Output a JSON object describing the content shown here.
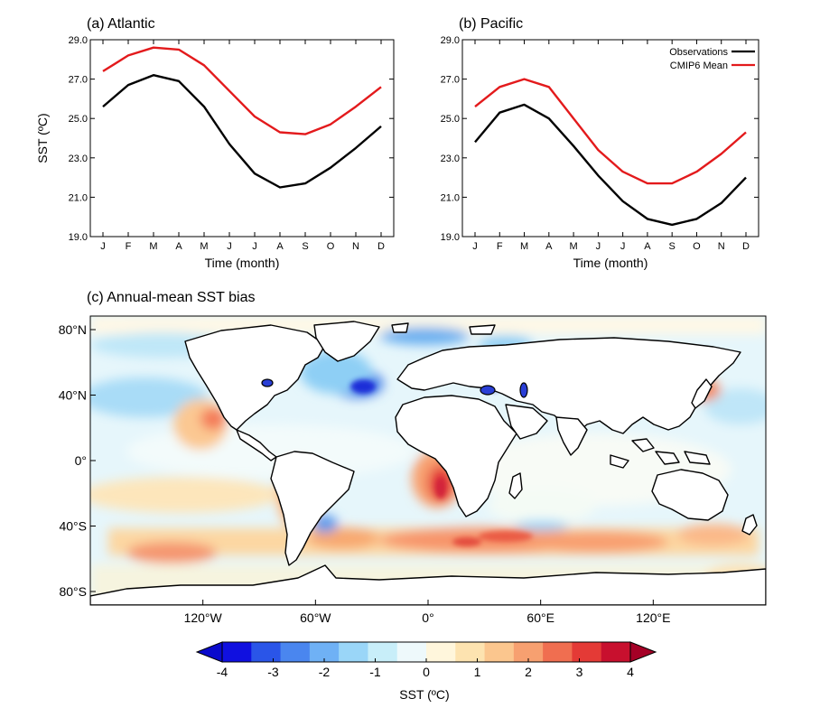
{
  "chart_data": [
    {
      "type": "line",
      "title": "(a) Atlantic",
      "xlabel": "Time (month)",
      "ylabel": "SST (ºC)",
      "categories": [
        "J",
        "F",
        "M",
        "A",
        "M",
        "J",
        "J",
        "A",
        "S",
        "O",
        "N",
        "D"
      ],
      "ylim": [
        19.0,
        29.0
      ],
      "yticks": [
        "19.0",
        "21.0",
        "23.0",
        "25.0",
        "27.0",
        "29.0"
      ],
      "series": [
        {
          "name": "Observations",
          "color": "#000000",
          "values": [
            25.6,
            26.7,
            27.2,
            26.9,
            25.6,
            23.7,
            22.2,
            21.5,
            21.7,
            22.5,
            23.5,
            24.6
          ]
        },
        {
          "name": "CMIP6 Mean",
          "color": "#e31a1c",
          "values": [
            27.4,
            28.2,
            28.6,
            28.5,
            27.7,
            26.4,
            25.1,
            24.3,
            24.2,
            24.7,
            25.6,
            26.6
          ]
        }
      ]
    },
    {
      "type": "line",
      "title": "(b) Pacific",
      "xlabel": "Time (month)",
      "ylabel": "",
      "categories": [
        "J",
        "F",
        "M",
        "A",
        "M",
        "J",
        "J",
        "A",
        "S",
        "O",
        "N",
        "D"
      ],
      "ylim": [
        19.0,
        29.0
      ],
      "yticks": [
        "19.0",
        "21.0",
        "23.0",
        "25.0",
        "27.0",
        "29.0"
      ],
      "legend": {
        "placement": "top-right",
        "entries": [
          "Observations",
          "CMIP6 Mean"
        ]
      },
      "series": [
        {
          "name": "Observations",
          "color": "#000000",
          "values": [
            23.8,
            25.3,
            25.7,
            25.0,
            23.6,
            22.1,
            20.8,
            19.9,
            19.6,
            19.9,
            20.7,
            22.0
          ]
        },
        {
          "name": "CMIP6 Mean",
          "color": "#e31a1c",
          "values": [
            25.6,
            26.6,
            27.0,
            26.6,
            25.0,
            23.4,
            22.3,
            21.7,
            21.7,
            22.3,
            23.2,
            24.3
          ]
        }
      ]
    },
    {
      "type": "heatmap",
      "title": "(c) Annual-mean SST bias",
      "ylabels": [
        "80°N",
        "40°N",
        "0°",
        "40°S",
        "80°S"
      ],
      "xlabels": [
        "120°W",
        "60°W",
        "0°",
        "60°E",
        "120°E"
      ],
      "colorbar": {
        "label": "SST (ºC)",
        "ticks": [
          "-4",
          "-3",
          "-2",
          "-1",
          "0",
          "1",
          "2",
          "3",
          "4"
        ],
        "range": [
          -4,
          4
        ],
        "extend": "both",
        "colors": [
          "#1010e0",
          "#2a55e8",
          "#4a86ef",
          "#6fb1f5",
          "#9ad6f8",
          "#c8eef9",
          "#eef9fb",
          "#fff6dc",
          "#fde3b0",
          "#fbc68e",
          "#f7a070",
          "#f06e50",
          "#e43a36",
          "#c8102e"
        ],
        "under_color": "#0a0acc",
        "over_color": "#a50026"
      }
    }
  ]
}
